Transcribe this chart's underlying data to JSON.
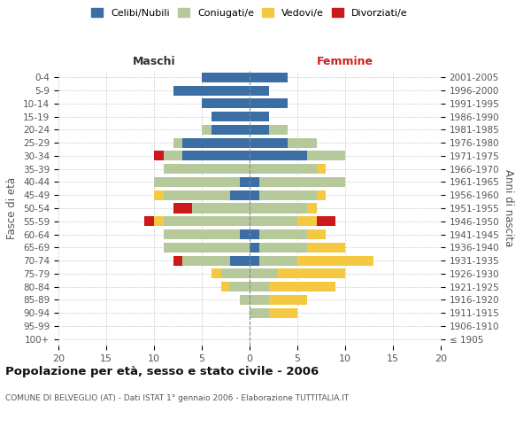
{
  "age_groups": [
    "100+",
    "95-99",
    "90-94",
    "85-89",
    "80-84",
    "75-79",
    "70-74",
    "65-69",
    "60-64",
    "55-59",
    "50-54",
    "45-49",
    "40-44",
    "35-39",
    "30-34",
    "25-29",
    "20-24",
    "15-19",
    "10-14",
    "5-9",
    "0-4"
  ],
  "birth_years": [
    "≤ 1905",
    "1906-1910",
    "1911-1915",
    "1916-1920",
    "1921-1925",
    "1926-1930",
    "1931-1935",
    "1936-1940",
    "1941-1945",
    "1946-1950",
    "1951-1955",
    "1956-1960",
    "1961-1965",
    "1966-1970",
    "1971-1975",
    "1976-1980",
    "1981-1985",
    "1986-1990",
    "1991-1995",
    "1996-2000",
    "2001-2005"
  ],
  "males": {
    "celibi": [
      0,
      0,
      0,
      0,
      0,
      0,
      2,
      0,
      1,
      0,
      0,
      2,
      1,
      0,
      7,
      7,
      4,
      4,
      5,
      8,
      5
    ],
    "coniugati": [
      0,
      0,
      0,
      1,
      2,
      3,
      5,
      9,
      8,
      9,
      6,
      7,
      9,
      9,
      2,
      1,
      1,
      0,
      0,
      0,
      0
    ],
    "vedovi": [
      0,
      0,
      0,
      0,
      1,
      1,
      0,
      0,
      0,
      1,
      0,
      1,
      0,
      0,
      0,
      0,
      0,
      0,
      0,
      0,
      0
    ],
    "divorziati": [
      0,
      0,
      0,
      0,
      0,
      0,
      1,
      0,
      0,
      1,
      2,
      0,
      0,
      0,
      1,
      0,
      0,
      0,
      0,
      0,
      0
    ]
  },
  "females": {
    "nubili": [
      0,
      0,
      0,
      0,
      0,
      0,
      1,
      1,
      1,
      0,
      0,
      1,
      1,
      0,
      6,
      4,
      2,
      2,
      4,
      2,
      4
    ],
    "coniugate": [
      0,
      0,
      2,
      2,
      2,
      3,
      4,
      5,
      5,
      5,
      6,
      6,
      9,
      7,
      4,
      3,
      2,
      0,
      0,
      0,
      0
    ],
    "vedove": [
      0,
      0,
      3,
      4,
      7,
      7,
      8,
      4,
      2,
      2,
      1,
      1,
      0,
      1,
      0,
      0,
      0,
      0,
      0,
      0,
      0
    ],
    "divorziate": [
      0,
      0,
      0,
      0,
      0,
      0,
      0,
      0,
      0,
      2,
      0,
      0,
      0,
      0,
      0,
      0,
      0,
      0,
      0,
      0,
      0
    ]
  },
  "colors": {
    "celibi": "#3a6ea5",
    "coniugati": "#b5c99a",
    "vedovi": "#f5c842",
    "divorziati": "#cc1a1a"
  },
  "xlim": [
    -20,
    20
  ],
  "xticklabels": [
    "20",
    "15",
    "10",
    "5",
    "0",
    "5",
    "10",
    "15",
    "20"
  ],
  "title": "Popolazione per età, sesso e stato civile - 2006",
  "subtitle": "COMUNE DI BELVEGLIO (AT) - Dati ISTAT 1° gennaio 2006 - Elaborazione TUTTITALIA.IT",
  "ylabel_left": "Fasce di età",
  "ylabel_right": "Anni di nascita",
  "label_maschi": "Maschi",
  "label_femmine": "Femmine",
  "legend_labels": [
    "Celibi/Nubili",
    "Coniugati/e",
    "Vedovi/e",
    "Divorziati/e"
  ],
  "background_color": "#ffffff",
  "grid_color": "#cccccc"
}
